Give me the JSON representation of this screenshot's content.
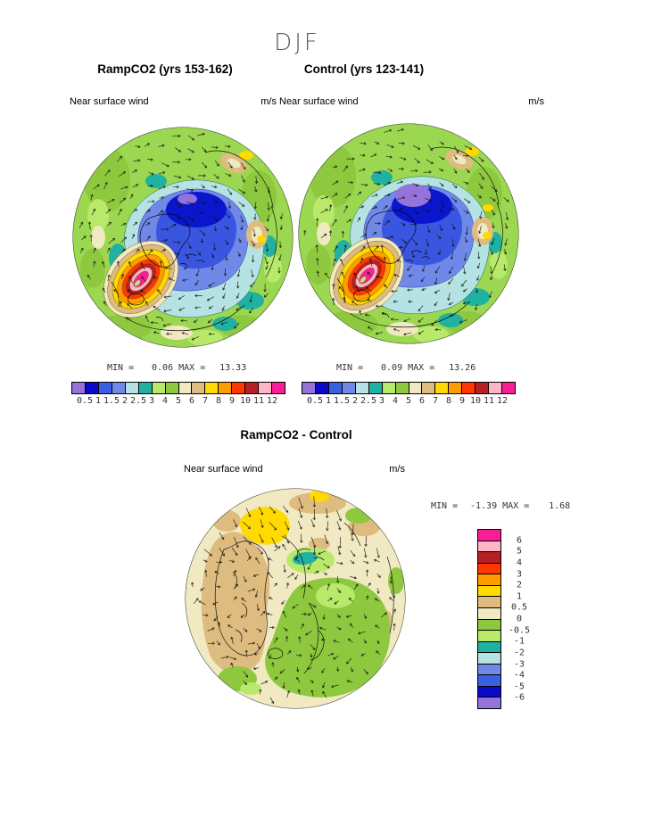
{
  "title": "DJF",
  "panels": [
    {
      "title": "RampCO2 (yrs 153-162)",
      "field": "Near surface wind",
      "units": "m/s",
      "min_label": "MIN =",
      "min_value": "0.06",
      "max_label": "MAX =",
      "max_value": "13.33",
      "ticks": [
        "0.5",
        "1",
        "1.5",
        "2",
        "2.5",
        "3",
        "4",
        "5",
        "6",
        "7",
        "8",
        "9",
        "10",
        "11",
        "12"
      ]
    },
    {
      "title": "Control (yrs 123-141)",
      "field": "Near surface wind",
      "units": "m/s",
      "min_label": "MIN =",
      "min_value": "0.09",
      "max_label": "MAX =",
      "max_value": "13.26",
      "ticks": [
        "0.5",
        "1",
        "1.5",
        "2",
        "2.5",
        "3",
        "4",
        "5",
        "6",
        "7",
        "8",
        "9",
        "10",
        "11",
        "12"
      ]
    },
    {
      "title": "RampCO2 - Control",
      "field": "Near surface wind",
      "units": "m/s",
      "min_label": "MIN =",
      "min_value": "-1.39",
      "max_label": "MAX =",
      "max_value": "1.68",
      "ticks": [
        "6",
        "5",
        "4",
        "3",
        "2",
        "1",
        "0.5",
        "0",
        "-0.5",
        "-1",
        "-2",
        "-3",
        "-4",
        "-5",
        "-6"
      ]
    }
  ],
  "chart_data": [
    {
      "type": "heatmap",
      "title": "RampCO2 (yrs 153-162)",
      "variable": "Near surface wind",
      "units": "m/s",
      "season": "DJF",
      "projection": "north polar stereographic",
      "min": 0.06,
      "max": 13.33,
      "contour_levels": [
        0.5,
        1,
        1.5,
        2,
        2.5,
        3,
        4,
        5,
        6,
        7,
        8,
        9,
        10,
        11,
        12
      ],
      "palette": [
        "#9673db",
        "#0a0ac8",
        "#3a5fe0",
        "#7088e8",
        "#b5e2e2",
        "#21b1a2",
        "#b9e96a",
        "#8ec83e",
        "#f0e9c2",
        "#debb7e",
        "#ffd900",
        "#ff9c00",
        "#ff3800",
        "#b62024",
        "#ffb5c5",
        "#fa1e96"
      ],
      "colorbar_orientation": "horizontal",
      "overlays": [
        "wind vector arrows",
        "coastlines"
      ],
      "features": [
        "speed maximum over North Atlantic storm track (>12 m/s)",
        "calm region over central Arctic (<1 m/s)"
      ]
    },
    {
      "type": "heatmap",
      "title": "Control (yrs 123-141)",
      "variable": "Near surface wind",
      "units": "m/s",
      "season": "DJF",
      "projection": "north polar stereographic",
      "min": 0.09,
      "max": 13.26,
      "contour_levels": [
        0.5,
        1,
        1.5,
        2,
        2.5,
        3,
        4,
        5,
        6,
        7,
        8,
        9,
        10,
        11,
        12
      ],
      "palette": [
        "#9673db",
        "#0a0ac8",
        "#3a5fe0",
        "#7088e8",
        "#b5e2e2",
        "#21b1a2",
        "#b9e96a",
        "#8ec83e",
        "#f0e9c2",
        "#debb7e",
        "#ffd900",
        "#ff9c00",
        "#ff3800",
        "#b62024",
        "#ffb5c5",
        "#fa1e96"
      ],
      "colorbar_orientation": "horizontal",
      "overlays": [
        "wind vector arrows",
        "coastlines"
      ],
      "features": [
        "speed maximum over North Atlantic storm track (>12 m/s)",
        "calm region over central Arctic (<1 m/s)"
      ]
    },
    {
      "type": "heatmap",
      "title": "RampCO2 - Control",
      "variable": "Near surface wind",
      "units": "m/s",
      "season": "DJF",
      "projection": "north polar stereographic",
      "min": -1.39,
      "max": 1.68,
      "contour_levels": [
        -6,
        -5,
        -4,
        -3,
        -2,
        -1,
        -0.5,
        0,
        0.5,
        1,
        2,
        3,
        4,
        5,
        6
      ],
      "palette": [
        "#9673db",
        "#0a0ac8",
        "#3a5fe0",
        "#7088e8",
        "#b5e2e2",
        "#21b1a2",
        "#b9e96a",
        "#8ec83e",
        "#f0e9c2",
        "#debb7e",
        "#ffd900",
        "#ff9c00",
        "#ff3800",
        "#b62024",
        "#ffb5c5",
        "#fa1e96"
      ],
      "colorbar_orientation": "vertical",
      "overlays": [
        "wind vector arrows",
        "coastlines"
      ],
      "features": [
        "weak positive differences (tan/yellow) over Greenland sector",
        "weak negative differences (green) over Siberian/Pacific sector"
      ]
    }
  ]
}
